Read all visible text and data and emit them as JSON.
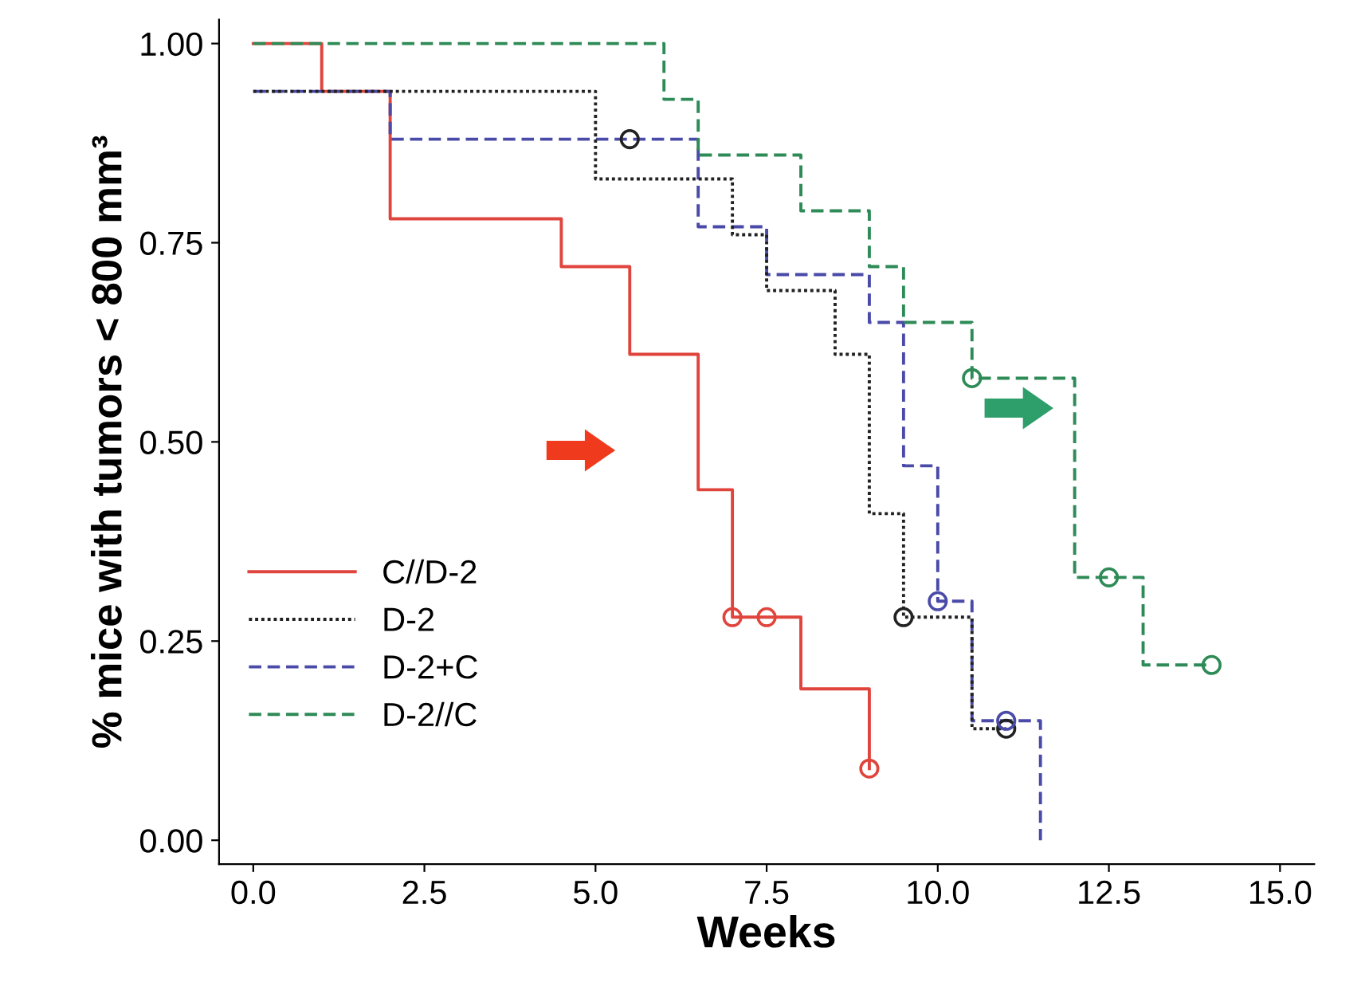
{
  "chart_data": {
    "type": "step",
    "xlabel": "Weeks",
    "ylabel": "% mice with tumors < 800 mm³",
    "xlim": [
      -0.5,
      15.5
    ],
    "ylim": [
      -0.03,
      1.03
    ],
    "xticks": [
      {
        "value": 0,
        "label": "0.0"
      },
      {
        "value": 2.5,
        "label": "2.5"
      },
      {
        "value": 5,
        "label": "5.0"
      },
      {
        "value": 7.5,
        "label": "7.5"
      },
      {
        "value": 10,
        "label": "10.0"
      },
      {
        "value": 12.5,
        "label": "12.5"
      },
      {
        "value": 15,
        "label": "15.0"
      }
    ],
    "yticks": [
      {
        "value": 0,
        "label": "0.00"
      },
      {
        "value": 0.25,
        "label": "0.25"
      },
      {
        "value": 0.5,
        "label": "0.50"
      },
      {
        "value": 0.75,
        "label": "0.75"
      },
      {
        "value": 1,
        "label": "1.00"
      }
    ],
    "grid": false,
    "legend": "bottom left",
    "series": [
      {
        "name": "C//D-2",
        "color": "#e0453d",
        "line_style": "solid",
        "x": [
          0,
          1,
          2,
          4.5,
          5.5,
          6.5,
          7,
          8,
          9
        ],
        "values": [
          1.0,
          0.94,
          0.78,
          0.72,
          0.61,
          0.44,
          0.28,
          0.19,
          0.09
        ]
      },
      {
        "name": "D-2",
        "color": "#222222",
        "line_style": "dotted",
        "x": [
          0,
          5,
          7,
          7.5,
          8.5,
          9,
          9.5,
          10.5,
          11
        ],
        "values": [
          0.94,
          0.83,
          0.76,
          0.69,
          0.61,
          0.41,
          0.28,
          0.14,
          0.14
        ]
      },
      {
        "name": "D-2+C",
        "color": "#4a4aa8",
        "line_style": "dashed",
        "x": [
          0,
          2,
          6.5,
          7.5,
          9,
          9.5,
          10,
          10.5,
          11.5
        ],
        "values": [
          0.94,
          0.88,
          0.77,
          0.71,
          0.65,
          0.47,
          0.3,
          0.15,
          0.0
        ]
      },
      {
        "name": "D-2//C",
        "color": "#2e8b57",
        "line_style": "dashed",
        "x": [
          0,
          6,
          6.5,
          8,
          9,
          9.5,
          10.5,
          12,
          13,
          14
        ],
        "values": [
          1.0,
          0.93,
          0.86,
          0.79,
          0.72,
          0.65,
          0.58,
          0.33,
          0.22,
          0.22
        ]
      },
      {
        "type": "scatter",
        "marker": "circle",
        "color": "#e0453d",
        "x": [
          7,
          7.5,
          9
        ],
        "values": [
          0.28,
          0.28,
          0.09
        ]
      },
      {
        "type": "scatter",
        "marker": "circle",
        "color": "#222222",
        "x": [
          5.5,
          9.5,
          11
        ],
        "values": [
          0.88,
          0.28,
          0.14
        ]
      },
      {
        "type": "scatter",
        "marker": "circle",
        "color": "#4a4aa8",
        "x": [
          10,
          11
        ],
        "values": [
          0.3,
          0.15
        ]
      },
      {
        "type": "scatter",
        "marker": "circle",
        "color": "#2e8b57",
        "x": [
          10.5,
          12.5,
          14
        ],
        "values": [
          0.58,
          0.33,
          0.22
        ]
      }
    ]
  }
}
